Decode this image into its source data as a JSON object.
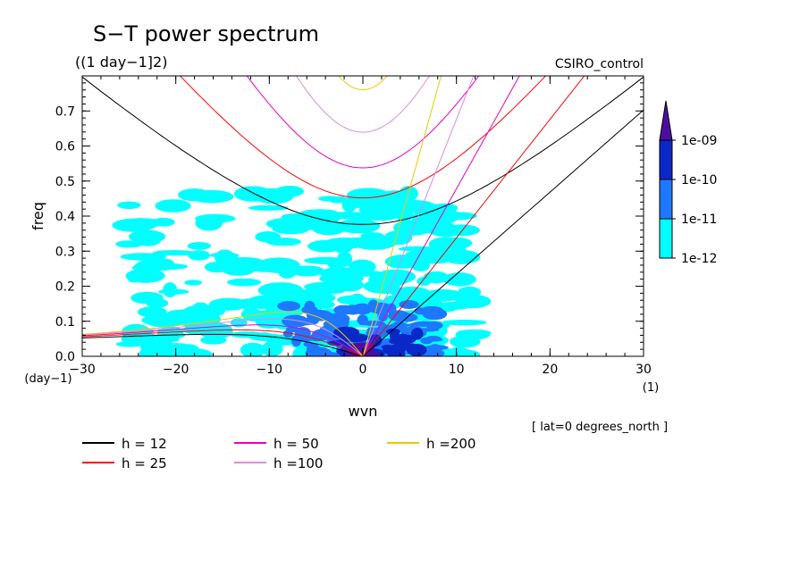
{
  "title": "S−T power spectrum",
  "units": "((1 day−1]2)",
  "model": "CSIRO_control",
  "annotation": "[ lat=0 degrees_north ]",
  "chart_data": {
    "type": "contour",
    "xlabel": "wvn",
    "ylabel": "freq",
    "xunit": "(1)",
    "yunit": "(day−1)",
    "xlim": [
      -30,
      30
    ],
    "ylim": [
      0,
      0.8
    ],
    "xticks": [
      -30,
      -20,
      -10,
      0,
      10,
      20,
      30
    ],
    "xtick_labels": [
      "−30",
      "−20",
      "−10",
      "0",
      "10",
      "20",
      "30"
    ],
    "yticks": [
      0,
      0.1,
      0.2,
      0.3,
      0.4,
      0.5,
      0.6,
      0.7
    ],
    "ytick_labels": [
      "0.0",
      "0.1",
      "0.2",
      "0.3",
      "0.4",
      "0.5",
      "0.6",
      "0.7"
    ],
    "colorbar": {
      "levels": [
        "1e-12",
        "1e-11",
        "1e-10",
        "1e-09"
      ],
      "colors": [
        "#00ffff",
        "#1e78ff",
        "#0a28c8",
        "#4b0fa0"
      ]
    },
    "dispersion_curves": [
      {
        "label": "h = 12",
        "h": 12,
        "color": "#000000"
      },
      {
        "label": "h = 25",
        "h": 25,
        "color": "#ff0000"
      },
      {
        "label": "h = 50",
        "h": 50,
        "color": "#e600c8"
      },
      {
        "label": "h =100",
        "h": 100,
        "color": "#dc8cdc"
      },
      {
        "label": "h =200",
        "h": 200,
        "color": "#f0c800"
      }
    ],
    "shading_regions": [
      {
        "level": 1,
        "x": [
          -25,
          12
        ],
        "y": [
          0.0,
          0.48
        ]
      },
      {
        "level": 2,
        "x": [
          -8,
          8
        ],
        "y": [
          0.0,
          0.15
        ]
      },
      {
        "level": 3,
        "x": [
          -3,
          6
        ],
        "y": [
          0.0,
          0.08
        ]
      },
      {
        "level": 4,
        "x": [
          -1,
          1
        ],
        "y": [
          0.0,
          0.03
        ]
      }
    ]
  }
}
